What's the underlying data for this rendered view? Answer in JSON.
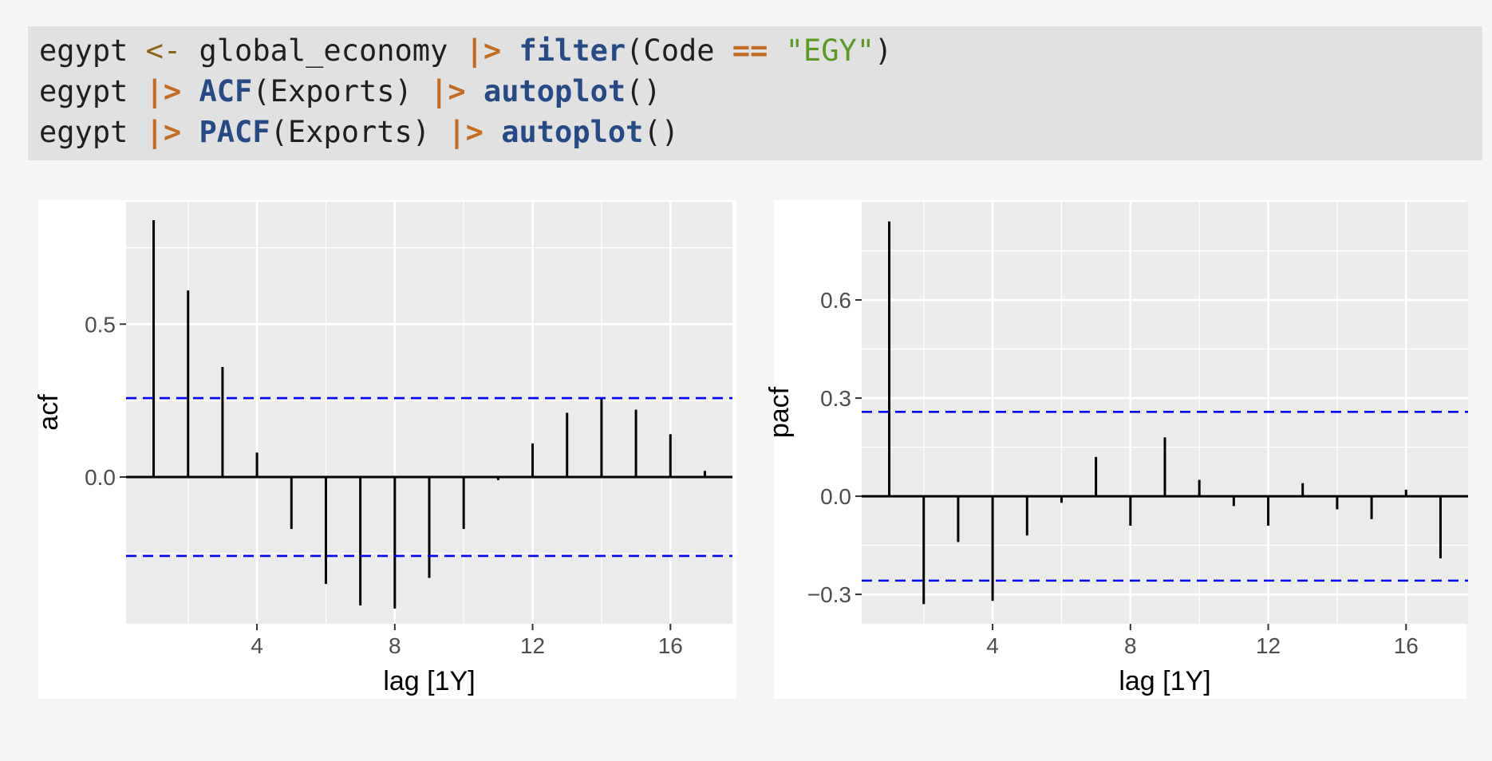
{
  "code": {
    "lines": [
      [
        {
          "t": "egypt ",
          "c": "plain"
        },
        {
          "t": "<-",
          "c": "assign"
        },
        {
          "t": " global_economy ",
          "c": "plain"
        },
        {
          "t": "|>",
          "c": "pipe"
        },
        {
          "t": " ",
          "c": "plain"
        },
        {
          "t": "filter",
          "c": "fn"
        },
        {
          "t": "(Code ",
          "c": "plain"
        },
        {
          "t": "==",
          "c": "op"
        },
        {
          "t": " ",
          "c": "plain"
        },
        {
          "t": "\"EGY\"",
          "c": "str"
        },
        {
          "t": ")",
          "c": "plain"
        }
      ],
      [
        {
          "t": "egypt ",
          "c": "plain"
        },
        {
          "t": "|>",
          "c": "pipe"
        },
        {
          "t": " ",
          "c": "plain"
        },
        {
          "t": "ACF",
          "c": "fn"
        },
        {
          "t": "(Exports) ",
          "c": "plain"
        },
        {
          "t": "|>",
          "c": "pipe"
        },
        {
          "t": " ",
          "c": "plain"
        },
        {
          "t": "autoplot",
          "c": "fn"
        },
        {
          "t": "()",
          "c": "plain"
        }
      ],
      [
        {
          "t": "egypt ",
          "c": "plain"
        },
        {
          "t": "|>",
          "c": "pipe"
        },
        {
          "t": " ",
          "c": "plain"
        },
        {
          "t": "PACF",
          "c": "fn"
        },
        {
          "t": "(Exports) ",
          "c": "plain"
        },
        {
          "t": "|>",
          "c": "pipe"
        },
        {
          "t": " ",
          "c": "plain"
        },
        {
          "t": "autoplot",
          "c": "fn"
        },
        {
          "t": "()",
          "c": "plain"
        }
      ]
    ]
  },
  "chart_data": [
    {
      "type": "bar",
      "style": "lollipop-segments",
      "xlabel": "lag [1Y]",
      "ylabel": "acf",
      "x": [
        1,
        2,
        3,
        4,
        5,
        6,
        7,
        8,
        9,
        10,
        11,
        12,
        13,
        14,
        15,
        16,
        17
      ],
      "values": [
        0.84,
        0.61,
        0.36,
        0.08,
        -0.17,
        -0.35,
        -0.42,
        -0.43,
        -0.33,
        -0.17,
        -0.01,
        0.11,
        0.21,
        0.26,
        0.22,
        0.14,
        0.02
      ],
      "xticks": [
        4,
        8,
        12,
        16
      ],
      "yticks": [
        0.0,
        0.5
      ],
      "ytick_labels": [
        "0.0",
        "0.5"
      ],
      "xlim": [
        0.2,
        17.8
      ],
      "ylim": [
        -0.48,
        0.9
      ],
      "confidence_bound": 0.258,
      "bound_color": "#0000ff",
      "grid": true,
      "panel_bg": "#ebebeb"
    },
    {
      "type": "bar",
      "style": "lollipop-segments",
      "xlabel": "lag [1Y]",
      "ylabel": "pacf",
      "x": [
        1,
        2,
        3,
        4,
        5,
        6,
        7,
        8,
        9,
        10,
        11,
        12,
        13,
        14,
        15,
        16,
        17
      ],
      "values": [
        0.84,
        -0.33,
        -0.14,
        -0.32,
        -0.12,
        -0.02,
        0.12,
        -0.09,
        0.18,
        0.05,
        -0.03,
        -0.09,
        0.04,
        -0.04,
        -0.07,
        0.02,
        -0.19
      ],
      "xticks": [
        4,
        8,
        12,
        16
      ],
      "yticks": [
        -0.3,
        0.0,
        0.3,
        0.6
      ],
      "ytick_labels": [
        "−0.3",
        "0.0",
        "0.3",
        "0.6"
      ],
      "xlim": [
        0.2,
        17.8
      ],
      "ylim": [
        -0.39,
        0.9
      ],
      "confidence_bound": 0.258,
      "bound_color": "#0000ff",
      "grid": true,
      "panel_bg": "#ebebeb"
    }
  ]
}
